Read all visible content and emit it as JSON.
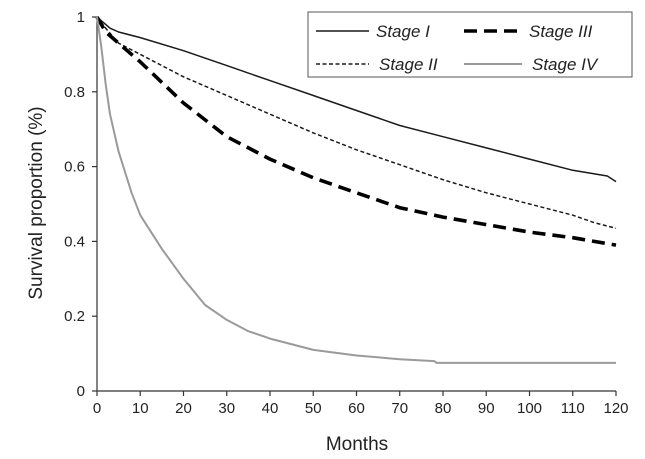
{
  "chart_data": {
    "type": "line",
    "title": "",
    "xlabel": "Months",
    "ylabel": "Survival proportion (%)",
    "xlim": [
      0,
      120
    ],
    "ylim": [
      0,
      1
    ],
    "x_ticks": [
      0,
      10,
      20,
      30,
      40,
      50,
      60,
      70,
      80,
      90,
      100,
      110,
      120
    ],
    "x_tick_labels": [
      "0",
      "10",
      "20",
      "30",
      "40",
      "50",
      "60",
      "70",
      "80",
      "90",
      "100",
      "110",
      "120"
    ],
    "y_ticks": [
      0,
      0.2,
      0.4,
      0.6,
      0.8,
      1
    ],
    "y_tick_labels": [
      "0",
      "0.2",
      "0.4",
      "0.6",
      "0.8",
      "1"
    ],
    "grid": false,
    "legend_position": "top-right",
    "series": [
      {
        "name": "Stage I",
        "color": "#1a1a1a",
        "style": "solid",
        "points": [
          [
            0,
            1
          ],
          [
            1,
            0.99
          ],
          [
            3,
            0.97
          ],
          [
            5,
            0.96
          ],
          [
            10,
            0.945
          ],
          [
            20,
            0.91
          ],
          [
            30,
            0.87
          ],
          [
            40,
            0.83
          ],
          [
            50,
            0.79
          ],
          [
            60,
            0.75
          ],
          [
            70,
            0.71
          ],
          [
            80,
            0.68
          ],
          [
            90,
            0.65
          ],
          [
            100,
            0.62
          ],
          [
            110,
            0.59
          ],
          [
            118,
            0.575
          ],
          [
            120,
            0.56
          ]
        ]
      },
      {
        "name": "Stage II",
        "color": "#1a1a1a",
        "style": "dotted",
        "points": [
          [
            0,
            1
          ],
          [
            2,
            0.97
          ],
          [
            5,
            0.93
          ],
          [
            10,
            0.9
          ],
          [
            20,
            0.84
          ],
          [
            30,
            0.79
          ],
          [
            40,
            0.74
          ],
          [
            50,
            0.69
          ],
          [
            60,
            0.645
          ],
          [
            70,
            0.605
          ],
          [
            80,
            0.565
          ],
          [
            90,
            0.53
          ],
          [
            100,
            0.5
          ],
          [
            110,
            0.47
          ],
          [
            115,
            0.45
          ],
          [
            120,
            0.435
          ]
        ]
      },
      {
        "name": "Stage III",
        "color": "#000000",
        "style": "dashed",
        "points": [
          [
            0,
            1
          ],
          [
            2,
            0.96
          ],
          [
            5,
            0.93
          ],
          [
            10,
            0.88
          ],
          [
            20,
            0.77
          ],
          [
            30,
            0.68
          ],
          [
            40,
            0.62
          ],
          [
            50,
            0.57
          ],
          [
            60,
            0.53
          ],
          [
            70,
            0.49
          ],
          [
            80,
            0.465
          ],
          [
            90,
            0.445
          ],
          [
            100,
            0.425
          ],
          [
            110,
            0.41
          ],
          [
            120,
            0.39
          ]
        ]
      },
      {
        "name": "Stage IV",
        "color": "#9a9a9a",
        "style": "solid",
        "points": [
          [
            0,
            1
          ],
          [
            1,
            0.92
          ],
          [
            2,
            0.82
          ],
          [
            3,
            0.74
          ],
          [
            5,
            0.64
          ],
          [
            8,
            0.53
          ],
          [
            10,
            0.47
          ],
          [
            15,
            0.38
          ],
          [
            20,
            0.3
          ],
          [
            25,
            0.23
          ],
          [
            30,
            0.19
          ],
          [
            35,
            0.16
          ],
          [
            40,
            0.14
          ],
          [
            50,
            0.11
          ],
          [
            60,
            0.095
          ],
          [
            70,
            0.085
          ],
          [
            78,
            0.08
          ],
          [
            78.5,
            0.075
          ],
          [
            90,
            0.075
          ],
          [
            100,
            0.075
          ],
          [
            110,
            0.075
          ],
          [
            120,
            0.075
          ]
        ]
      }
    ]
  }
}
